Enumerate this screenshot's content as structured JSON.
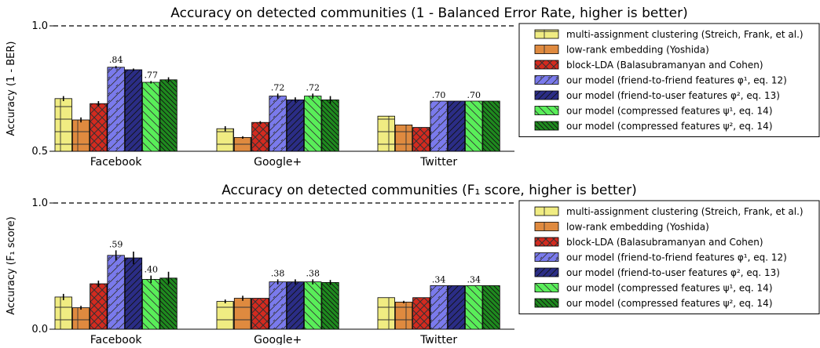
{
  "chart_data": [
    {
      "type": "bar",
      "title": "Accuracy on detected communities (1 - Balanced Error Rate, higher is better)",
      "ylabel": "Accuracy (1 - BER)",
      "ylim": [
        0.5,
        1.0
      ],
      "yticks": [
        "0.5",
        "1.0"
      ],
      "reference_line": 1.0,
      "categories": [
        "Facebook",
        "Google+",
        "Twitter"
      ],
      "series": [
        {
          "name": "multi-assignment clustering (Streich, Frank, et al.)",
          "color": "#f0ec82",
          "hatch": "grid",
          "values": [
            0.71,
            0.59,
            0.64
          ],
          "errors": [
            0.01,
            0.01,
            0.0
          ]
        },
        {
          "name": "low-rank embedding (Yoshida)",
          "color": "#df8a3f",
          "hatch": "grid",
          "values": [
            0.625,
            0.555,
            0.605
          ],
          "errors": [
            0.01,
            0.005,
            0.0
          ]
        },
        {
          "name": "block-LDA (Balasubramanyan and Cohen)",
          "color": "#d42a1f",
          "hatch": "cross",
          "values": [
            0.69,
            0.615,
            0.595
          ],
          "errors": [
            0.01,
            0.005,
            0.0
          ]
        },
        {
          "name": "our model (friend-to-friend features φ¹, eq. 12)",
          "color": "#7a7aec",
          "hatch": "diag",
          "values": [
            0.835,
            0.72,
            0.7
          ],
          "errors": [
            0.005,
            0.01,
            0.0
          ]
        },
        {
          "name": "our model (friend-to-user features φ², eq. 13)",
          "color": "#2b2d86",
          "hatch": "diag2",
          "values": [
            0.825,
            0.705,
            0.7
          ],
          "errors": [
            0.005,
            0.01,
            0.0
          ]
        },
        {
          "name": "our model (compressed features ψ¹, eq. 14)",
          "color": "#59ee59",
          "hatch": "back",
          "values": [
            0.775,
            0.72,
            0.7
          ],
          "errors": [
            0.005,
            0.01,
            0.0
          ]
        },
        {
          "name": "our model (compressed features ψ², eq. 14)",
          "color": "#1f8a1f",
          "hatch": "back2",
          "values": [
            0.785,
            0.705,
            0.7
          ],
          "errors": [
            0.01,
            0.015,
            0.0
          ]
        }
      ],
      "data_labels": [
        {
          "category": 0,
          "series": 3,
          "text": ".84"
        },
        {
          "category": 0,
          "series": 5,
          "text": ".77"
        },
        {
          "category": 1,
          "series": 3,
          "text": ".72"
        },
        {
          "category": 1,
          "series": 5,
          "text": ".72"
        },
        {
          "category": 2,
          "series": 3,
          "text": ".70"
        },
        {
          "category": 2,
          "series": 5,
          "text": ".70"
        }
      ],
      "legend_placement": "right"
    },
    {
      "type": "bar",
      "title": "Accuracy on detected communities (F₁ score, higher is better)",
      "ylabel": "Accuracy (F₁ score)",
      "ylim": [
        0.0,
        1.0
      ],
      "yticks": [
        "0.0",
        "1.0"
      ],
      "reference_line": 1.0,
      "categories": [
        "Facebook",
        "Google+",
        "Twitter"
      ],
      "series": [
        {
          "name": "multi-assignment clustering (Streich, Frank, et al.)",
          "color": "#f0ec82",
          "hatch": "grid",
          "values": [
            0.255,
            0.22,
            0.25
          ],
          "errors": [
            0.025,
            0.015,
            0.0
          ]
        },
        {
          "name": "low-rank embedding (Yoshida)",
          "color": "#df8a3f",
          "hatch": "grid",
          "values": [
            0.17,
            0.245,
            0.215
          ],
          "errors": [
            0.015,
            0.02,
            0.01
          ]
        },
        {
          "name": "block-LDA (Balasubramanyan and Cohen)",
          "color": "#d42a1f",
          "hatch": "cross",
          "values": [
            0.36,
            0.245,
            0.25
          ],
          "errors": [
            0.025,
            0.0,
            0.0
          ]
        },
        {
          "name": "our model (friend-to-friend features φ¹, eq. 12)",
          "color": "#7a7aec",
          "hatch": "diag",
          "values": [
            0.585,
            0.375,
            0.345
          ],
          "errors": [
            0.04,
            0.02,
            0.0
          ]
        },
        {
          "name": "our model (friend-to-user features φ², eq. 13)",
          "color": "#2b2d86",
          "hatch": "diag2",
          "values": [
            0.565,
            0.375,
            0.345
          ],
          "errors": [
            0.05,
            0.02,
            0.0
          ]
        },
        {
          "name": "our model (compressed features ψ¹, eq. 14)",
          "color": "#59ee59",
          "hatch": "back",
          "values": [
            0.395,
            0.375,
            0.345
          ],
          "errors": [
            0.03,
            0.02,
            0.0
          ]
        },
        {
          "name": "our model (compressed features ψ², eq. 14)",
          "color": "#1f8a1f",
          "hatch": "back2",
          "values": [
            0.405,
            0.37,
            0.345
          ],
          "errors": [
            0.05,
            0.02,
            0.0
          ]
        }
      ],
      "data_labels": [
        {
          "category": 0,
          "series": 3,
          "text": ".59"
        },
        {
          "category": 0,
          "series": 5,
          "text": ".40"
        },
        {
          "category": 1,
          "series": 3,
          "text": ".38"
        },
        {
          "category": 1,
          "series": 5,
          "text": ".38"
        },
        {
          "category": 2,
          "series": 3,
          "text": ".34"
        },
        {
          "category": 2,
          "series": 5,
          "text": ".34"
        }
      ],
      "legend_placement": "right"
    }
  ]
}
